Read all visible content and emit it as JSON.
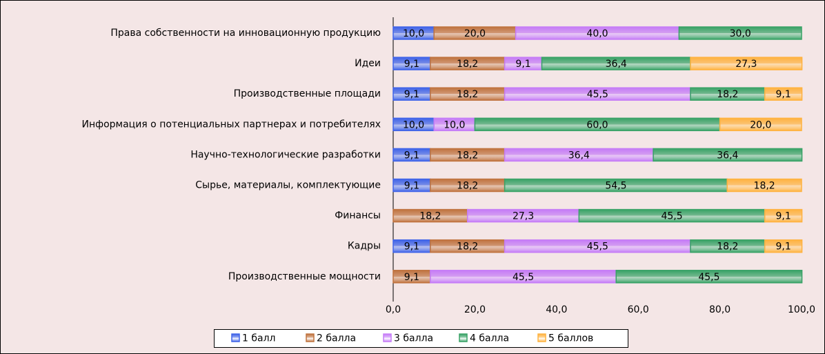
{
  "chart_data": {
    "type": "stacked-barh",
    "categories": [
      "Права собственности на инновационную продукцию",
      "Идеи",
      "Производственные площади",
      "Информация о потенциальных партнерах и потребителях",
      "Научно-технологические разработки",
      "Сырье, материалы, комплектующие",
      "Финансы",
      "Кадры",
      "Производственные мощности"
    ],
    "series": [
      {
        "name": "1 балл",
        "color": "#3f63e8",
        "values": [
          10,
          9.1,
          9.1,
          10,
          9.1,
          9.1,
          null,
          9.1,
          null
        ],
        "value_labels": [
          "10,0",
          "9,1",
          "9,1",
          "10,0",
          "9,1",
          "9,1",
          null,
          "9,1",
          null
        ]
      },
      {
        "name": "2 балла",
        "color": "#c0733f",
        "values": [
          20,
          18.2,
          18.2,
          null,
          18.2,
          18.2,
          18.2,
          18.2,
          9.1
        ],
        "value_labels": [
          "20,0",
          "18,2",
          "18,2",
          null,
          "18,2",
          "18,2",
          "18,2",
          "18,2",
          "9,1"
        ]
      },
      {
        "name": "3 балла",
        "color": "#c57cf7",
        "values": [
          40,
          9.1,
          45.5,
          10,
          36.4,
          null,
          27.3,
          45.5,
          45.5
        ],
        "value_labels": [
          "40,0",
          "9,1",
          "45,5",
          "10,0",
          "36,4",
          null,
          "27,3",
          "45,5",
          "45,5"
        ]
      },
      {
        "name": "4 балла",
        "color": "#38a266",
        "values": [
          30,
          36.4,
          18.2,
          60,
          36.4,
          54.5,
          45.5,
          18.2,
          45.5
        ],
        "value_labels": [
          "30,0",
          "36,4",
          "18,2",
          "60,0",
          "36,4",
          "54,5",
          "45,5",
          "18,2",
          "45,5"
        ]
      },
      {
        "name": "5 баллов",
        "color": "#ffb340",
        "values": [
          null,
          27.3,
          9.1,
          20,
          null,
          18.2,
          9.1,
          9.1,
          null
        ],
        "value_labels": [
          null,
          "27,3",
          "9,1",
          "20,0",
          null,
          "18,2",
          "9,1",
          "9,1",
          null
        ]
      }
    ],
    "xlim": [
      0,
      100
    ],
    "xticks": [
      {
        "value": 0,
        "label": "0,0"
      },
      {
        "value": 20,
        "label": "20,0"
      },
      {
        "value": 40,
        "label": "40,0"
      },
      {
        "value": 60,
        "label": "60,0"
      },
      {
        "value": 80,
        "label": "80,0"
      },
      {
        "value": 100,
        "label": "100,0"
      }
    ],
    "legend": "bottom"
  }
}
